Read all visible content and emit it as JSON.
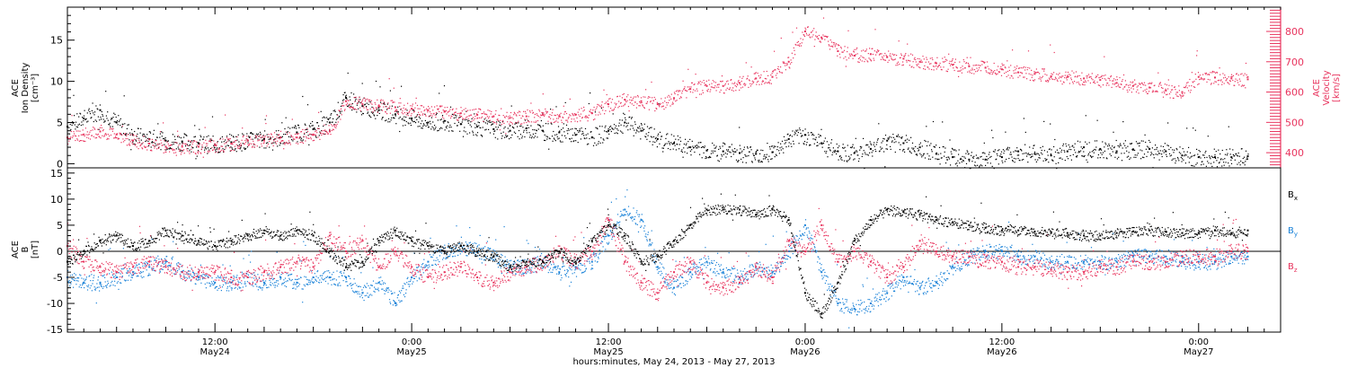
{
  "chart_data": {
    "type": "scatter",
    "xlabel": "hours:minutes, May 24, 2013 - May 27, 2013",
    "x_unit": "hours",
    "xlim": [
      3,
      77
    ],
    "x_ticks": [
      {
        "value": 12,
        "time": "12:00",
        "date": "May24"
      },
      {
        "value": 24,
        "time": "0:00",
        "date": "May25"
      },
      {
        "value": 36,
        "time": "12:00",
        "date": "May25"
      },
      {
        "value": 48,
        "time": "0:00",
        "date": "May26"
      },
      {
        "value": 60,
        "time": "12:00",
        "date": "May26"
      },
      {
        "value": 72,
        "time": "0:00",
        "date": "May27"
      }
    ],
    "colors": {
      "black": "#000000",
      "red": "#e8345e",
      "blue": "#1a82d8"
    },
    "panels": [
      {
        "id": "top",
        "ylabel_lines": [
          "ACE",
          "Ion Density",
          "[cm⁻³]"
        ],
        "ylim": [
          -0.5,
          19
        ],
        "yticks": [
          0,
          5,
          10,
          15
        ],
        "y2label_lines": [
          "ACE",
          "Velocity",
          "[km/s]"
        ],
        "y2lim": [
          350,
          880
        ],
        "y2ticks": [
          400,
          500,
          600,
          700,
          800
        ],
        "series": [
          {
            "axis": "left",
            "color": "#000000",
            "x": [
              3,
              4,
              5,
              6,
              7,
              8,
              9,
              10,
              11,
              12,
              13,
              14,
              15,
              16,
              17,
              18,
              19,
              20,
              21,
              22,
              23,
              24,
              25,
              26,
              27,
              28,
              29,
              30,
              31,
              32,
              33,
              34,
              35,
              36,
              37,
              38,
              39,
              40,
              41,
              42,
              43,
              44,
              45,
              46,
              47,
              48,
              49,
              50,
              51,
              52,
              53,
              54,
              55,
              56,
              57,
              58,
              59,
              60,
              61,
              62,
              63,
              64,
              65,
              66,
              67,
              68,
              69,
              70,
              71,
              72,
              73,
              74,
              75
            ],
            "y": [
              4.5,
              5.5,
              6.5,
              5.0,
              3.5,
              3.0,
              2.8,
              2.7,
              2.5,
              2.3,
              2.6,
              2.8,
              3.0,
              3.2,
              3.8,
              4.2,
              5.0,
              8.0,
              7.0,
              6.5,
              6.0,
              5.5,
              5.0,
              5.2,
              4.8,
              4.5,
              4.2,
              4.0,
              4.3,
              4.0,
              3.8,
              3.5,
              3.2,
              4.0,
              5.0,
              4.0,
              3.0,
              2.5,
              2.0,
              1.6,
              1.5,
              1.3,
              1.2,
              1.4,
              3.0,
              3.5,
              2.5,
              1.5,
              1.3,
              1.8,
              2.8,
              2.5,
              2.0,
              1.2,
              0.8,
              0.5,
              0.5,
              0.8,
              1.5,
              1.2,
              1.0,
              1.5,
              2.0,
              1.8,
              1.5,
              1.7,
              1.8,
              1.5,
              1.0,
              0.8,
              0.8,
              0.8,
              0.9
            ]
          },
          {
            "axis": "right",
            "color": "#e8345e",
            "x": [
              3,
              4,
              5,
              6,
              7,
              8,
              9,
              10,
              11,
              12,
              13,
              14,
              15,
              16,
              17,
              18,
              19,
              20,
              21,
              22,
              23,
              24,
              25,
              26,
              27,
              28,
              29,
              30,
              31,
              32,
              33,
              34,
              35,
              36,
              37,
              38,
              39,
              40,
              41,
              42,
              43,
              44,
              45,
              46,
              47,
              48,
              49,
              50,
              51,
              52,
              53,
              54,
              55,
              56,
              57,
              58,
              59,
              60,
              61,
              62,
              63,
              64,
              65,
              66,
              67,
              68,
              69,
              70,
              71,
              72,
              73,
              74,
              75
            ],
            "y": [
              450,
              460,
              470,
              460,
              440,
              430,
              420,
              420,
              420,
              425,
              430,
              440,
              440,
              450,
              450,
              460,
              470,
              570,
              560,
              555,
              550,
              545,
              540,
              535,
              530,
              525,
              520,
              515,
              520,
              525,
              520,
              525,
              530,
              560,
              575,
              570,
              560,
              580,
              610,
              620,
              620,
              630,
              645,
              650,
              700,
              800,
              780,
              735,
              720,
              725,
              715,
              710,
              700,
              695,
              690,
              685,
              680,
              675,
              665,
              660,
              652,
              650,
              645,
              640,
              630,
              620,
              615,
              605,
              600,
              650,
              648,
              645,
              642
            ]
          }
        ]
      },
      {
        "id": "bottom",
        "ylabel_lines": [
          "ACE",
          "B",
          "[nT]"
        ],
        "ylim": [
          -15.5,
          16
        ],
        "yticks": [
          -15,
          -10,
          -5,
          0,
          5,
          10,
          15
        ],
        "legend": [
          "Bx",
          "By",
          "Bz"
        ],
        "series": [
          {
            "name": "Bx",
            "color": "#000000",
            "x": [
              3,
              4,
              5,
              6,
              7,
              8,
              9,
              10,
              11,
              12,
              13,
              14,
              15,
              16,
              17,
              18,
              19,
              20,
              21,
              22,
              23,
              24,
              25,
              26,
              27,
              28,
              29,
              30,
              31,
              32,
              33,
              34,
              35,
              36,
              37,
              38,
              39,
              40,
              41,
              42,
              43,
              44,
              45,
              46,
              47,
              48,
              49,
              50,
              51,
              52,
              53,
              54,
              55,
              56,
              57,
              58,
              59,
              60,
              61,
              62,
              63,
              64,
              65,
              66,
              67,
              68,
              69,
              70,
              71,
              72,
              73,
              74,
              75
            ],
            "y": [
              -2,
              0,
              2,
              3,
              1,
              2,
              4,
              3,
              2,
              1,
              2,
              3,
              4,
              3,
              4,
              3,
              0,
              -3,
              -2,
              2,
              4,
              2,
              1,
              0,
              1,
              0,
              -1,
              -3,
              -2,
              -2,
              0,
              -2,
              2,
              5,
              3,
              -2,
              -1,
              2,
              5,
              8,
              8,
              8,
              7,
              8,
              6,
              -8,
              -12,
              -6,
              2,
              6,
              8,
              7.5,
              7,
              6,
              5.5,
              5,
              4.5,
              4,
              4,
              3.8,
              3.5,
              3.5,
              3,
              3,
              3.5,
              3.8,
              4,
              3.8,
              3.5,
              3.5,
              4,
              3.5,
              4
            ]
          },
          {
            "name": "By",
            "color": "#1a82d8",
            "x": [
              3,
              4,
              5,
              6,
              7,
              8,
              9,
              10,
              11,
              12,
              13,
              14,
              15,
              16,
              17,
              18,
              19,
              20,
              21,
              22,
              23,
              24,
              25,
              26,
              27,
              28,
              29,
              30,
              31,
              32,
              33,
              34,
              35,
              36,
              37,
              38,
              39,
              40,
              41,
              42,
              43,
              44,
              45,
              46,
              47,
              48,
              49,
              50,
              51,
              52,
              53,
              54,
              55,
              56,
              57,
              58,
              59,
              60,
              61,
              62,
              63,
              64,
              65,
              66,
              67,
              68,
              69,
              70,
              71,
              72,
              73,
              74,
              75
            ],
            "y": [
              -5,
              -6,
              -6,
              -5,
              -4,
              -3,
              -2,
              -4,
              -5,
              -6,
              -6,
              -5,
              -6,
              -5,
              -6,
              -5,
              -5,
              -5,
              -8,
              -6,
              -10,
              -5,
              -2,
              0,
              1,
              0,
              -1,
              -3,
              -3,
              -2,
              -4,
              -3,
              -2,
              3,
              8,
              6,
              -3,
              -7,
              -4,
              -2,
              -4,
              -5,
              -3,
              -4,
              0,
              5,
              -4,
              -10,
              -11,
              -10,
              -8,
              -5,
              -7,
              -6,
              -3,
              -1,
              0,
              0,
              -1,
              -1,
              -2,
              -2,
              -2,
              -2,
              -2,
              -1,
              -1,
              -1,
              -2,
              -2,
              -2,
              -1,
              -1
            ]
          },
          {
            "name": "Bz",
            "color": "#e8345e",
            "x": [
              3,
              4,
              5,
              6,
              7,
              8,
              9,
              10,
              11,
              12,
              13,
              14,
              15,
              16,
              17,
              18,
              19,
              20,
              21,
              22,
              23,
              24,
              25,
              26,
              27,
              28,
              29,
              30,
              31,
              32,
              33,
              34,
              35,
              36,
              37,
              38,
              39,
              40,
              41,
              42,
              43,
              44,
              45,
              46,
              47,
              48,
              49,
              50,
              51,
              52,
              53,
              54,
              55,
              56,
              57,
              58,
              59,
              60,
              61,
              62,
              63,
              64,
              65,
              66,
              67,
              68,
              69,
              70,
              71,
              72,
              73,
              74,
              75
            ],
            "y": [
              1,
              -2,
              -3,
              -4,
              -3,
              -2,
              -3,
              -4,
              -4,
              -4,
              -5,
              -5,
              -4,
              -3,
              -2,
              -3,
              3,
              0,
              2,
              -3,
              0,
              -3,
              -5,
              -4,
              -3,
              -5,
              -6,
              -4,
              -3,
              -2,
              0,
              -2,
              0,
              6,
              -2,
              -6,
              -8,
              -4,
              -2,
              -6,
              -7,
              -6,
              -3,
              -5,
              2,
              0,
              5,
              -2,
              0,
              -2,
              -5,
              -3,
              2,
              0,
              -1,
              -1,
              -2,
              -2,
              -3,
              -3,
              -3.5,
              -4,
              -4,
              -3,
              -3,
              -2,
              -2,
              -2,
              -1,
              -1,
              -1,
              0,
              0
            ]
          }
        ]
      }
    ]
  }
}
